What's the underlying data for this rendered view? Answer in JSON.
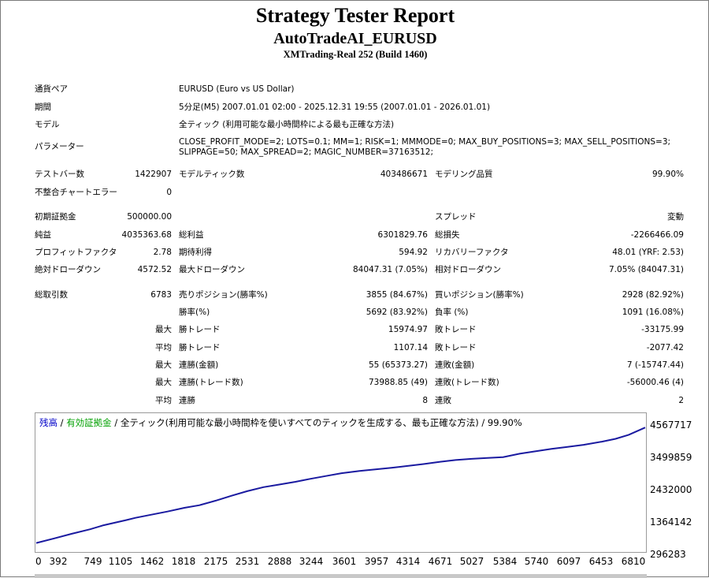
{
  "report": {
    "title": "Strategy Tester Report",
    "ea_name": "AutoTradeAI_EURUSD",
    "server": "XMTrading-Real 252 (Build 1460)"
  },
  "info": {
    "symbol_label": "通貨ペア",
    "symbol_value": "EURUSD (Euro vs US Dollar)",
    "period_label": "期間",
    "period_value": "5分足(M5) 2007.01.01 02:00 - 2025.12.31 19:55 (2007.01.01 - 2026.01.01)",
    "model_label": "モデル",
    "model_value": "全ティック (利用可能な最小時間枠による最も正確な方法)",
    "params_label": "パラメーター",
    "params_line1": "CLOSE_PROFIT_MODE=2; LOTS=0.1; MM=1; RISK=1; MMMODE=0; MAX_BUY_POSITIONS=3; MAX_SELL_POSITIONS=3;",
    "params_line2": "SLIPPAGE=50; MAX_SPREAD=2; MAGIC_NUMBER=37163512;"
  },
  "stats": {
    "bars_label": "テストバー数",
    "bars_value": "1422907",
    "ticks_label": "モデルティック数",
    "ticks_value": "403486671",
    "quality_label": "モデリング品質",
    "quality_value": "99.90%",
    "mismatch_label": "不整合チャートエラー",
    "mismatch_value": "0",
    "deposit_label": "初期証拠金",
    "deposit_value": "500000.00",
    "spread_label": "スプレッド",
    "spread_value": "変動",
    "net_profit_label": "純益",
    "net_profit_value": "4035363.68",
    "gross_profit_label": "総利益",
    "gross_profit_value": "6301829.76",
    "gross_loss_label": "総損失",
    "gross_loss_value": "-2266466.09",
    "profit_factor_label": "プロフィットファクタ",
    "profit_factor_value": "2.78",
    "expected_payoff_label": "期待利得",
    "expected_payoff_value": "594.92",
    "recovery_factor_label": "リカバリーファクタ",
    "recovery_factor_value": "48.01 (YRF: 2.53)",
    "abs_dd_label": "絶対ドローダウン",
    "abs_dd_value": "4572.52",
    "max_dd_label": "最大ドローダウン",
    "max_dd_value": "84047.31 (7.05%)",
    "rel_dd_label": "相対ドローダウン",
    "rel_dd_value": "7.05% (84047.31)",
    "total_trades_label": "総取引数",
    "total_trades_value": "6783",
    "short_label": "売りポジション(勝率%)",
    "short_value": "3855 (84.67%)",
    "long_label": "買いポジション(勝率%)",
    "long_value": "2928 (82.92%)",
    "winrate_label": "勝率(%)",
    "winrate_value": "5692 (83.92%)",
    "lossrate_label": "負率 (%)",
    "lossrate_value": "1091 (16.08%)",
    "max_label": "最大",
    "largest_win_label": "勝トレード",
    "largest_win_value": "15974.97",
    "largest_loss_label": "敗トレード",
    "largest_loss_value": "-33175.99",
    "avg_label": "平均",
    "avg_win_label": "勝トレード",
    "avg_win_value": "1107.14",
    "avg_loss_label": "敗トレード",
    "avg_loss_value": "-2077.42",
    "max2_label": "最大",
    "max_consec_wins_label": "連勝(金額)",
    "max_consec_wins_value": "55 (65373.27)",
    "max_consec_losses_label": "連敗(金額)",
    "max_consec_losses_value": "7 (-15747.44)",
    "max3_label": "最大",
    "max_consec_profit_label": "連勝(トレード数)",
    "max_consec_profit_value": "73988.85 (49)",
    "max_consec_loss_label": "連敗(トレード数)",
    "max_consec_loss_value": "-56000.46 (4)",
    "avg2_label": "平均",
    "avg_consec_wins_label": "連勝",
    "avg_consec_wins_value": "8",
    "avg_consec_losses_label": "連敗",
    "avg_consec_losses_value": "2"
  },
  "legend": {
    "balance": "残高",
    "sep1": " / ",
    "equity": "有効証拠金",
    "sep2": " / ",
    "rest": "全ティック(利用可能な最小時間枠を使いすべてのティックを生成する、最も正確な方法) / 99.90%"
  },
  "colors": {
    "balance": "#0000c8",
    "equity": "#00a000",
    "line": "#1a1aa0"
  },
  "chart_data": {
    "type": "line",
    "title": "",
    "xlabel": "",
    "ylabel": "",
    "xlim": [
      0,
      6783
    ],
    "ylim": [
      296283,
      4567717
    ],
    "x_ticks": [
      "0",
      "392",
      "749",
      "1105",
      "1462",
      "1818",
      "2175",
      "2531",
      "2888",
      "3244",
      "3601",
      "3957",
      "4314",
      "4671",
      "5027",
      "5384",
      "5740",
      "6097",
      "6453",
      "6810"
    ],
    "y_ticks": [
      "4567717",
      "3499859",
      "2432000",
      "1364142",
      "296283"
    ],
    "series": [
      {
        "name": "残高",
        "x": [
          0,
          200,
          392,
          600,
          749,
          1000,
          1105,
          1300,
          1462,
          1650,
          1818,
          2000,
          2175,
          2350,
          2531,
          2700,
          2888,
          3050,
          3244,
          3400,
          3601,
          3800,
          3957,
          4100,
          4314,
          4500,
          4671,
          4850,
          5027,
          5200,
          5384,
          5550,
          5740,
          5900,
          6097,
          6300,
          6453,
          6600,
          6783
        ],
        "y": [
          500000,
          660000,
          820000,
          980000,
          1120000,
          1300000,
          1380000,
          1500000,
          1600000,
          1730000,
          1820000,
          1980000,
          2150000,
          2310000,
          2450000,
          2540000,
          2640000,
          2740000,
          2850000,
          2940000,
          3020000,
          3080000,
          3130000,
          3180000,
          3260000,
          3340000,
          3400000,
          3440000,
          3470000,
          3500000,
          3620000,
          3700000,
          3790000,
          3850000,
          3930000,
          4040000,
          4140000,
          4280000,
          4535000
        ]
      }
    ],
    "grid": false,
    "legend": "top-left"
  }
}
